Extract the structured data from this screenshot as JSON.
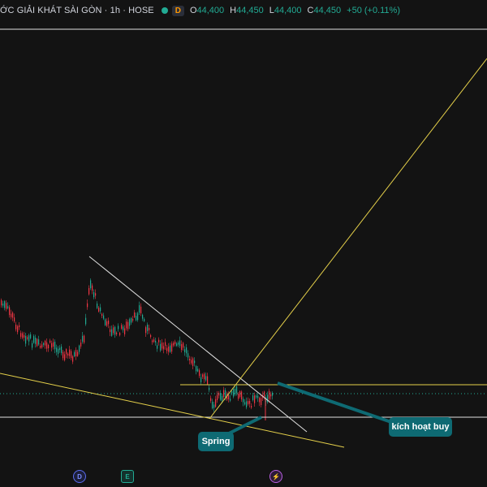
{
  "legend": {
    "title": "ỚC GIẢI KHÁT SÀI GÒN · 1h · HOSE",
    "badge": "D",
    "open_key": "O",
    "open": "44,400",
    "high_key": "H",
    "high": "44,450",
    "low_key": "L",
    "low": "44,400",
    "close_key": "C",
    "close": "44,450",
    "change": "+50 (+0.11%)"
  },
  "annotations": {
    "spring": "Spring",
    "buy": "kích hoạt buy"
  },
  "event_markers": {
    "dividend": "D",
    "earnings": "E",
    "split": "⚡"
  },
  "colors": {
    "background": "#131313",
    "up_candle": "#22ab94",
    "down_candle": "#f23645",
    "trend_white": "#e0e0e0",
    "trend_yellow": "#e5d04a",
    "callout": "#0e6a73"
  }
}
